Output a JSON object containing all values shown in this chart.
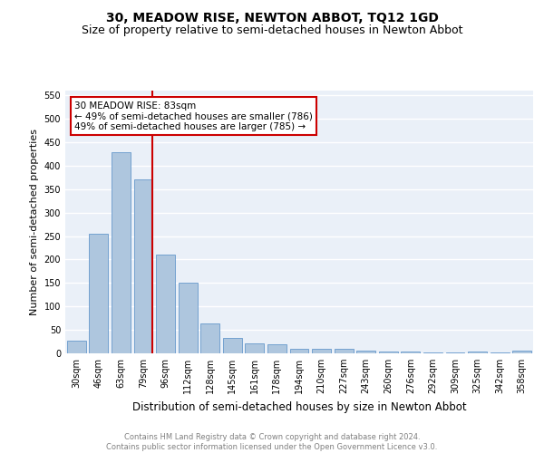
{
  "title": "30, MEADOW RISE, NEWTON ABBOT, TQ12 1GD",
  "subtitle": "Size of property relative to semi-detached houses in Newton Abbot",
  "xlabel": "Distribution of semi-detached houses by size in Newton Abbot",
  "ylabel": "Number of semi-detached properties",
  "footnote": "Contains HM Land Registry data © Crown copyright and database right 2024.\nContains public sector information licensed under the Open Government Licence v3.0.",
  "bar_labels": [
    "30sqm",
    "46sqm",
    "63sqm",
    "79sqm",
    "96sqm",
    "112sqm",
    "128sqm",
    "145sqm",
    "161sqm",
    "178sqm",
    "194sqm",
    "210sqm",
    "227sqm",
    "243sqm",
    "260sqm",
    "276sqm",
    "292sqm",
    "309sqm",
    "325sqm",
    "342sqm",
    "358sqm"
  ],
  "bar_values": [
    27,
    254,
    428,
    370,
    211,
    151,
    64,
    32,
    21,
    19,
    10,
    9,
    10,
    6,
    4,
    3,
    2,
    1,
    4,
    1,
    5
  ],
  "bar_color": "#aec6de",
  "bar_edgecolor": "#6699cc",
  "vline_color": "#cc0000",
  "annotation_title": "30 MEADOW RISE: 83sqm",
  "annotation_line1": "← 49% of semi-detached houses are smaller (786)",
  "annotation_line2": "49% of semi-detached houses are larger (785) →",
  "annotation_box_edgecolor": "#cc0000",
  "ylim": [
    0,
    560
  ],
  "yticks": [
    0,
    50,
    100,
    150,
    200,
    250,
    300,
    350,
    400,
    450,
    500,
    550
  ],
  "background_color": "#eaf0f8",
  "grid_color": "#ffffff",
  "title_fontsize": 10,
  "subtitle_fontsize": 9,
  "ylabel_fontsize": 8,
  "xlabel_fontsize": 8.5,
  "tick_fontsize": 7,
  "footnote_fontsize": 6,
  "annotation_fontsize": 7.5
}
